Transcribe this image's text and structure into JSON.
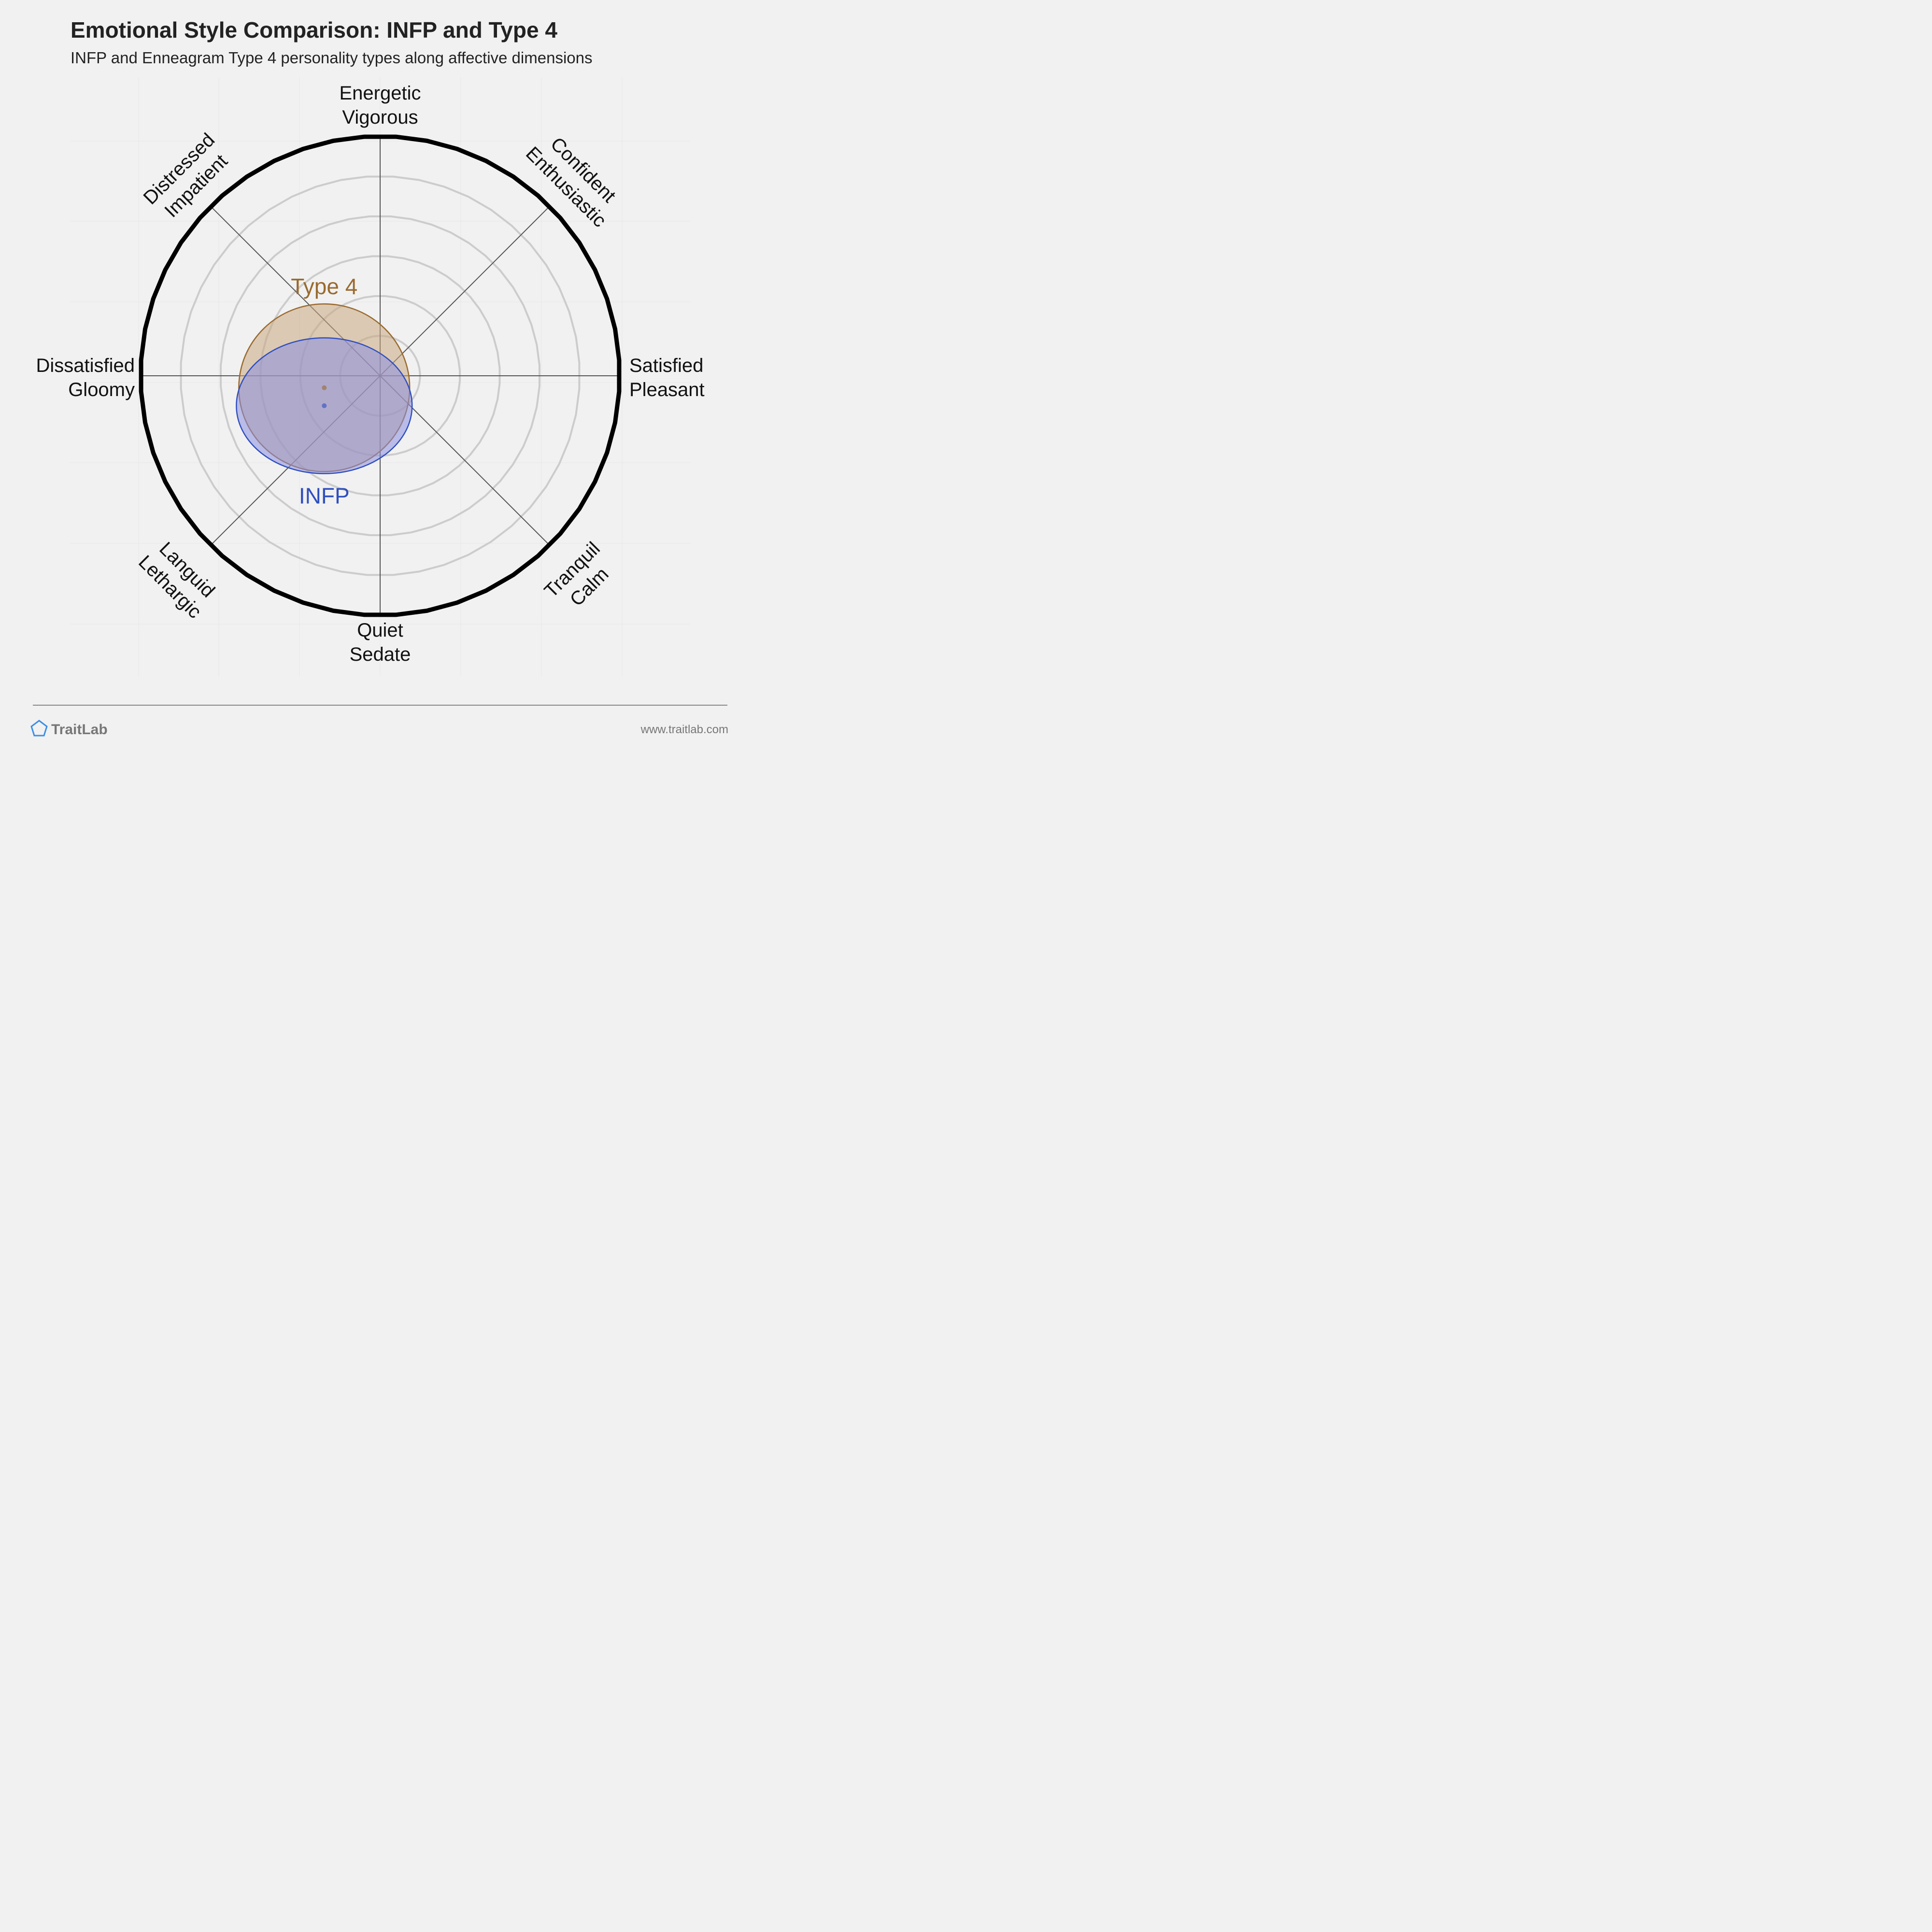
{
  "chart_data": {
    "type": "radar-circle",
    "title": "Emotional Style Comparison: INFP and Type 4",
    "subtitle": "INFP and Enneagram Type 4 personality types along affective dimensions",
    "axes": [
      {
        "id": "energetic",
        "angle": 90,
        "lines": [
          "Energetic",
          "Vigorous"
        ]
      },
      {
        "id": "confident",
        "angle": 45,
        "lines": [
          "Confident",
          "Enthusiastic"
        ]
      },
      {
        "id": "satisfied",
        "angle": 0,
        "lines": [
          "Satisfied",
          "Pleasant"
        ]
      },
      {
        "id": "tranquil",
        "angle": -45,
        "lines": [
          "Tranquil",
          "Calm"
        ]
      },
      {
        "id": "quiet",
        "angle": -90,
        "lines": [
          "Quiet",
          "Sedate"
        ]
      },
      {
        "id": "languid",
        "angle": -135,
        "lines": [
          "Languid",
          "Lethargic"
        ]
      },
      {
        "id": "dissatisfied",
        "angle": 180,
        "lines": [
          "Dissatisfied",
          "Gloomy"
        ]
      },
      {
        "id": "distressed",
        "angle": 135,
        "lines": [
          "Distressed",
          "Impatient"
        ]
      }
    ],
    "range": [
      -6,
      6
    ],
    "rings": [
      1,
      2,
      3,
      4,
      5
    ],
    "series": [
      {
        "name": "Type 4",
        "x": -1.4,
        "y": -0.3,
        "rx": 2.14,
        "ry": 2.1,
        "color": "#9a6a2f",
        "fill": "#c8a880"
      },
      {
        "name": "INFP",
        "x": -1.4,
        "y": -0.75,
        "rx": 2.2,
        "ry": 1.7,
        "color": "#2f4fbf",
        "fill": "#8a8ee0"
      }
    ]
  },
  "footer": {
    "brand": "TraitLab",
    "url": "www.traitlab.com",
    "icon": "pentagon-logo-icon",
    "accent": "#3a8ee6"
  }
}
